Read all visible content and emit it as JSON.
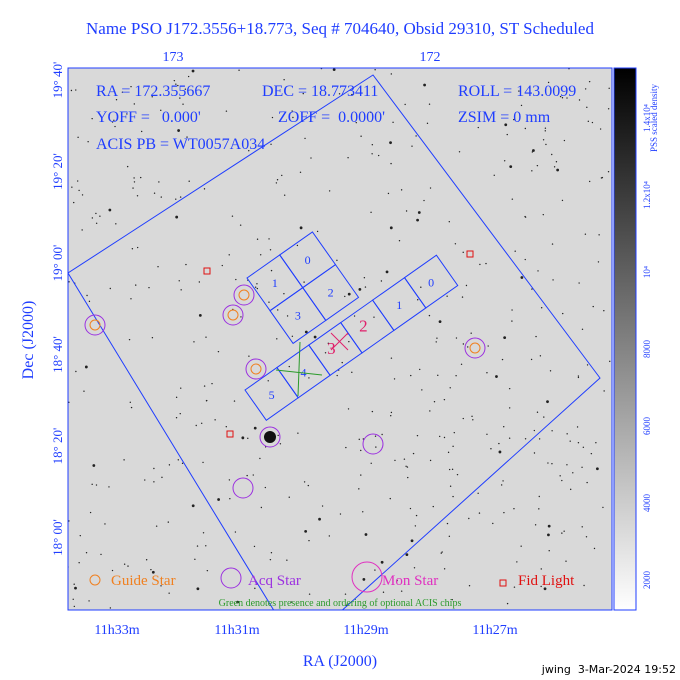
{
  "header": {
    "title": "Name PSO J172.3556+18.773, Seq # 704640, Obsid 29310, ST Scheduled"
  },
  "axes": {
    "top_ticks": [
      "173",
      "172"
    ],
    "left_ticks": [
      "19° 40'",
      "19° 20'",
      "19° 00'",
      "18° 40'",
      "18° 20'",
      "18° 00'"
    ],
    "left_label": "Dec (J2000)",
    "bottom_ticks": [
      "11h33m",
      "11h31m",
      "11h29m",
      "11h27m"
    ],
    "bottom_label": "RA (J2000)"
  },
  "info": [
    "RA = 172.355667",
    "DEC = 18.773411",
    "ROLL = 143.0099",
    "YOFF =   0.000'",
    "ZOFF =  0.0000'",
    "ZSIM = 0 mm",
    "ACIS PB = WT0057A034"
  ],
  "i_chips": [
    "0",
    "1",
    "2",
    "3"
  ],
  "s_chips": [
    "0",
    "1",
    "2",
    "3",
    "4",
    "5"
  ],
  "legend": [
    "Guide Star",
    "Acq Star",
    "Mon Star",
    "Fid Light"
  ],
  "note": "Green denotes presence and ordering of optional ACIS chips",
  "colorbar": {
    "ticks": [
      "2000",
      "4000",
      "6000",
      "8000",
      "10⁴",
      "1.2x10⁴",
      "1.4x10⁴"
    ],
    "label": "PSS scaled density"
  },
  "footer": "jwing  3-Mar-2024 19:52"
}
